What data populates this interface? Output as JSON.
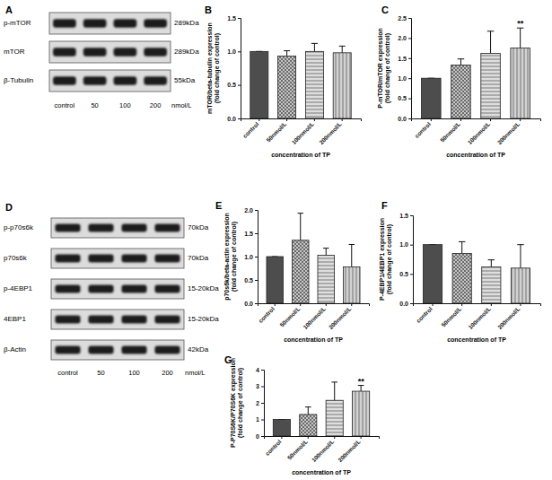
{
  "blots": [
    {
      "title": "A",
      "rows": [
        {
          "label": "p-mTOR",
          "size": "289kDa"
        },
        {
          "label": "mTOR",
          "size": "289kDa"
        },
        {
          "label": "β-Tubulin",
          "size": "55kDa"
        }
      ],
      "lanes": [
        "control",
        "50",
        "100",
        "200"
      ],
      "lane_unit": "nmol/L"
    },
    {
      "title": "D",
      "rows": [
        {
          "label": "p-p70s6k",
          "size": "70kDa"
        },
        {
          "label": "p70s6k",
          "size": "70kDa"
        },
        {
          "label": "p-4EBP1",
          "size": "15-20kDa"
        },
        {
          "label": "4EBP1",
          "size": "15-20kDa"
        },
        {
          "label": "β-Actin",
          "size": "42kDa"
        }
      ],
      "lanes": [
        "control",
        "50",
        "100",
        "200"
      ],
      "lane_unit": "nmol/L"
    }
  ],
  "chart_data": [
    {
      "type": "bar",
      "title": "B",
      "categories": [
        "control",
        "50nmol/L",
        "100nmol/L",
        "200nmol/L"
      ],
      "values": [
        1,
        0.93,
        1.0,
        0.98
      ],
      "errors": [
        0,
        0.08,
        0.12,
        0.1
      ],
      "colors": [
        "#4d4d4d",
        "#c4c4c4",
        "#dedede",
        "#d2d2d2"
      ],
      "x_label": "concentration of TP",
      "y_label": [
        "mTOR/beta-tubulin expression",
        "(fold change of control)"
      ],
      "ylim": [
        0,
        1.5
      ],
      "yticks": [
        {
          "value": 0,
          "label": "0.0"
        },
        0.5,
        {
          "value": 1,
          "label": "1.0"
        },
        1.5
      ]
    },
    {
      "type": "bar",
      "title": "C",
      "categories": [
        "control",
        "50nmol/L",
        "100nmol/L",
        "200nmol/L"
      ],
      "values": [
        1,
        1.33,
        1.62,
        1.75
      ],
      "errors": [
        0,
        0.15,
        0.55,
        0.5
      ],
      "annotations": [
        null,
        null,
        null,
        "**"
      ],
      "colors": [
        "#4d4d4d",
        "#c4c4c4",
        "#dedede",
        "#d2d2d2"
      ],
      "x_label": "concentration of TP",
      "y_label": [
        "P-mTOR/mTOR expression",
        "(fold change of control)"
      ],
      "ylim": [
        0,
        2.5
      ],
      "yticks": [
        {
          "value": 0,
          "label": "0.0"
        },
        0.5,
        {
          "value": 1,
          "label": "1.0"
        },
        1.5,
        {
          "value": 2,
          "label": "2.0"
        },
        2.5
      ]
    },
    {
      "type": "bar",
      "title": "E",
      "categories": [
        "control",
        "50nmol/L",
        "100nmol/L",
        "200nmol/L"
      ],
      "values": [
        1,
        1.35,
        1.03,
        0.78
      ],
      "errors": [
        0,
        0.58,
        0.15,
        0.48
      ],
      "colors": [
        "#4d4d4d",
        "#c4c4c4",
        "#dedede",
        "#d2d2d2"
      ],
      "x_label": "concentration of TP",
      "y_label": [
        "p70s6k/beta-actin expression",
        "(fold change of control)"
      ],
      "ylim": [
        0,
        2
      ],
      "yticks": [
        {
          "value": 0,
          "label": "0.0"
        },
        0.5,
        {
          "value": 1,
          "label": "1.0"
        },
        1.5,
        {
          "value": 2,
          "label": "2.0"
        }
      ]
    },
    {
      "type": "bar",
      "title": "F",
      "categories": [
        "control",
        "50nmol/L",
        "100nmol/L",
        "200nmol/L"
      ],
      "values": [
        1,
        0.85,
        0.62,
        0.6
      ],
      "errors": [
        0,
        0.2,
        0.12,
        0.4
      ],
      "colors": [
        "#4d4d4d",
        "#c4c4c4",
        "#dedede",
        "#d2d2d2"
      ],
      "x_label": "concentration of TP",
      "y_label": [
        "P-4EBP1/4EBP1 expression",
        "(fold change of control)"
      ],
      "ylim": [
        0,
        1.5
      ],
      "yticks": [
        {
          "value": 0,
          "label": "0.0"
        },
        0.5,
        {
          "value": 1,
          "label": "1.0"
        },
        1.5
      ]
    },
    {
      "type": "bar",
      "title": "G",
      "categories": [
        "control",
        "50nmol/L",
        "100nmol/L",
        "200nmol/L"
      ],
      "values": [
        1,
        1.3,
        2.15,
        2.7
      ],
      "errors": [
        0,
        0.45,
        1.1,
        0.35
      ],
      "annotations": [
        null,
        null,
        null,
        "**"
      ],
      "colors": [
        "#4d4d4d",
        "#c4c4c4",
        "#dedede",
        "#d2d2d2"
      ],
      "x_label": "concentration of TP",
      "y_label": [
        "P-P70S6K/P70S6K expression",
        "(fold change of control)"
      ],
      "ylim": [
        0,
        4
      ],
      "yticks": [
        0,
        1,
        2,
        3,
        4
      ]
    }
  ]
}
